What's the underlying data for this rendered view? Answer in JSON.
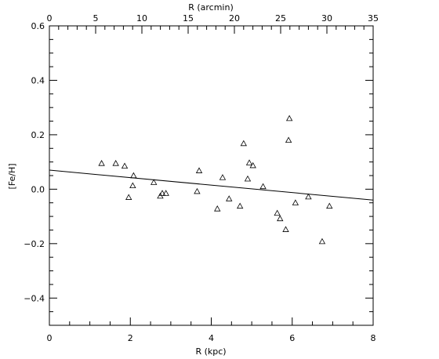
{
  "chart_data": {
    "type": "scatter",
    "xlabel": "R (kpc)",
    "x2label": "R (arcmin)",
    "ylabel": "[Fe/H]",
    "xlim": [
      0,
      8
    ],
    "x2lim": [
      0,
      35
    ],
    "ylim": [
      -0.5,
      0.6
    ],
    "x_ticks": [
      "0",
      "2",
      "4",
      "6",
      "8"
    ],
    "x2_ticks": [
      "0",
      "5",
      "10",
      "15",
      "20",
      "25",
      "30",
      "35"
    ],
    "y_ticks": [
      "-0.4",
      "-0.2",
      "0.0",
      "0.2",
      "0.4",
      "0.6"
    ],
    "marker": "open-triangle",
    "grid": false,
    "points": [
      {
        "x": 1.29,
        "y": 0.095
      },
      {
        "x": 1.64,
        "y": 0.095
      },
      {
        "x": 1.86,
        "y": 0.085
      },
      {
        "x": 1.96,
        "y": -0.03
      },
      {
        "x": 2.06,
        "y": 0.013
      },
      {
        "x": 2.08,
        "y": 0.05
      },
      {
        "x": 2.58,
        "y": 0.025
      },
      {
        "x": 2.74,
        "y": -0.025
      },
      {
        "x": 2.79,
        "y": -0.015
      },
      {
        "x": 2.88,
        "y": -0.015
      },
      {
        "x": 3.65,
        "y": -0.008
      },
      {
        "x": 3.7,
        "y": 0.068
      },
      {
        "x": 4.15,
        "y": -0.072
      },
      {
        "x": 4.28,
        "y": 0.043
      },
      {
        "x": 4.44,
        "y": -0.035
      },
      {
        "x": 4.71,
        "y": -0.062
      },
      {
        "x": 4.8,
        "y": 0.168
      },
      {
        "x": 4.9,
        "y": 0.038
      },
      {
        "x": 4.94,
        "y": 0.097
      },
      {
        "x": 5.03,
        "y": 0.087
      },
      {
        "x": 5.28,
        "y": 0.01
      },
      {
        "x": 5.63,
        "y": -0.088
      },
      {
        "x": 5.7,
        "y": -0.108
      },
      {
        "x": 5.84,
        "y": -0.148
      },
      {
        "x": 5.91,
        "y": 0.18
      },
      {
        "x": 5.93,
        "y": 0.26
      },
      {
        "x": 6.08,
        "y": -0.05
      },
      {
        "x": 6.4,
        "y": -0.028
      },
      {
        "x": 6.74,
        "y": -0.192
      },
      {
        "x": 6.92,
        "y": -0.062
      }
    ],
    "fit_line": {
      "x": [
        0,
        8
      ],
      "y": [
        0.07,
        -0.04
      ]
    }
  }
}
